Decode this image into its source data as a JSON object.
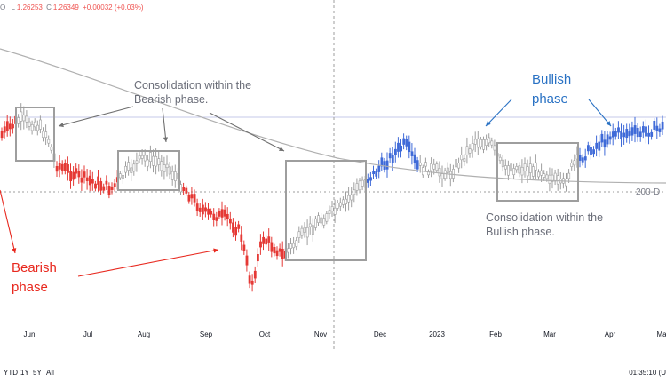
{
  "header": {
    "ohlc": [
      {
        "key": "O",
        "value": ""
      },
      {
        "key": "L",
        "value": "1.26253"
      },
      {
        "key": "C",
        "value": "1.26349"
      },
      {
        "key": "chg",
        "value": "+0.00032 (+0.03%)"
      }
    ]
  },
  "annotations": {
    "consolidation_bearish": "Consolidation within the\nBearish phase.",
    "consolidation_bullish": "Consolidation within the\nBullish phase.",
    "bullish_phase": "Bullish\nphase",
    "bearish_phase": "Bearish\nphase",
    "ma_label": "200-D"
  },
  "time_axis": {
    "months": [
      "Jun",
      "Jul",
      "Aug",
      "Sep",
      "Oct",
      "Nov",
      "Dec",
      "2023",
      "Feb",
      "Mar",
      "Apr",
      "Ma"
    ]
  },
  "range_bar": {
    "buttons": [
      "YTD",
      "1Y",
      "5Y",
      "All"
    ],
    "clock": "01:35:10 (U"
  },
  "colors": {
    "bear": "#e53935",
    "bull": "#3f6ad8",
    "neutral": "#9e9e9e",
    "box": "#9e9e9e",
    "red_text": "#e8281e",
    "blue_text": "#2a72c4",
    "ma_line": "#b0b0b0"
  },
  "chart_data": {
    "type": "line",
    "title": "",
    "xlabel": "",
    "ylabel": "",
    "x": [
      "Jun",
      "Jul",
      "Aug",
      "Sep",
      "Oct",
      "Nov",
      "Dec",
      "2023",
      "Feb",
      "Mar",
      "Apr",
      "Ma"
    ],
    "series": [
      {
        "values": [
          1.257,
          1.219,
          1.221,
          1.163,
          1.102,
          1.165,
          1.212,
          1.207,
          1.232,
          1.232,
          1.243,
          1.256
        ]
      }
    ],
    "note_phases": [
      "Bearish phase",
      "Bullish phase"
    ]
  }
}
